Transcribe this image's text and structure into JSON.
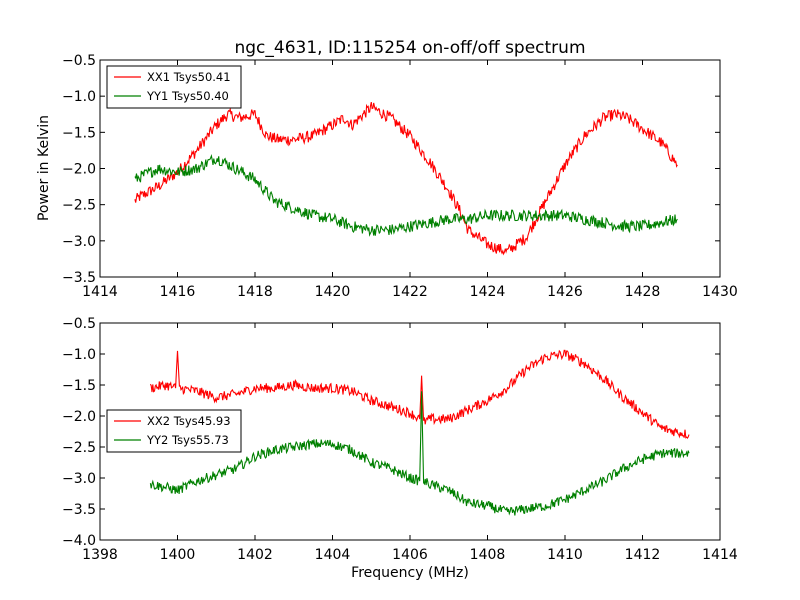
{
  "title": "ngc_4631, ID:115254 on-off/off spectrum",
  "colors": {
    "xx": "#ff0000",
    "yy": "#008000"
  },
  "chart_data": [
    {
      "type": "line",
      "title": "ngc_4631, ID:115254 on-off/off spectrum",
      "xlabel": "",
      "ylabel": "Power in Kelvin",
      "xlim": [
        1414,
        1430
      ],
      "ylim": [
        -3.5,
        -0.5
      ],
      "xticks": [
        1414,
        1416,
        1418,
        1420,
        1422,
        1424,
        1426,
        1428,
        1430
      ],
      "yticks": [
        -3.5,
        -3.0,
        -2.5,
        -2.0,
        -1.5,
        -1.0,
        -0.5
      ],
      "xtick_labels": [
        "1414",
        "1416",
        "1418",
        "1420",
        "1422",
        "1424",
        "1426",
        "1428",
        "1430"
      ],
      "ytick_labels": [
        "−3.5",
        "−3.0",
        "−2.5",
        "−2.0",
        "−1.5",
        "−1.0",
        "−0.5"
      ],
      "grid": false,
      "legend_position": "top-left",
      "series": [
        {
          "name": "XX1 Tsys50.41",
          "color": "#ff0000",
          "x": [
            1414.9,
            1415.0,
            1415.5,
            1416.0,
            1416.5,
            1417.0,
            1417.3,
            1417.6,
            1418.0,
            1418.3,
            1418.6,
            1419.0,
            1419.5,
            1420.0,
            1420.3,
            1420.5,
            1420.7,
            1421.0,
            1421.5,
            1422.0,
            1422.5,
            1423.0,
            1423.3,
            1423.5,
            1424.0,
            1424.5,
            1425.0,
            1425.5,
            1426.0,
            1426.5,
            1427.0,
            1427.3,
            1427.6,
            1428.0,
            1428.5,
            1428.9
          ],
          "y": [
            -2.45,
            -2.4,
            -2.25,
            -2.05,
            -1.75,
            -1.4,
            -1.25,
            -1.3,
            -1.25,
            -1.55,
            -1.6,
            -1.6,
            -1.55,
            -1.4,
            -1.3,
            -1.4,
            -1.3,
            -1.15,
            -1.3,
            -1.55,
            -1.9,
            -2.3,
            -2.6,
            -2.85,
            -3.05,
            -3.15,
            -2.95,
            -2.45,
            -1.95,
            -1.55,
            -1.3,
            -1.25,
            -1.3,
            -1.45,
            -1.65,
            -1.95
          ]
        },
        {
          "name": "YY1 Tsys50.40",
          "color": "#008000",
          "x": [
            1414.9,
            1415.5,
            1416.0,
            1416.5,
            1417.0,
            1417.5,
            1418.0,
            1418.5,
            1419.0,
            1419.5,
            1420.0,
            1420.5,
            1421.0,
            1421.5,
            1422.0,
            1422.5,
            1423.0,
            1423.5,
            1424.0,
            1424.5,
            1425.0,
            1425.5,
            1426.0,
            1426.5,
            1427.0,
            1427.5,
            1428.0,
            1428.9
          ],
          "y": [
            -2.15,
            -2.0,
            -2.05,
            -2.0,
            -1.85,
            -2.0,
            -2.15,
            -2.45,
            -2.55,
            -2.65,
            -2.7,
            -2.8,
            -2.85,
            -2.85,
            -2.8,
            -2.75,
            -2.7,
            -2.7,
            -2.65,
            -2.65,
            -2.65,
            -2.65,
            -2.65,
            -2.7,
            -2.75,
            -2.8,
            -2.8,
            -2.7
          ]
        }
      ]
    },
    {
      "type": "line",
      "title": "",
      "xlabel": "Frequency (MHz)",
      "ylabel": "",
      "xlim": [
        1398,
        1414
      ],
      "ylim": [
        -4.0,
        -0.5
      ],
      "xticks": [
        1398,
        1400,
        1402,
        1404,
        1406,
        1408,
        1410,
        1412,
        1414
      ],
      "yticks": [
        -4.0,
        -3.5,
        -3.0,
        -2.5,
        -2.0,
        -1.5,
        -1.0,
        -0.5
      ],
      "xtick_labels": [
        "1398",
        "1400",
        "1402",
        "1404",
        "1406",
        "1408",
        "1410",
        "1412",
        "1414"
      ],
      "ytick_labels": [
        "−4.0",
        "−3.5",
        "−3.0",
        "−2.5",
        "−2.0",
        "−1.5",
        "−1.0",
        "−0.5"
      ],
      "grid": false,
      "legend_position": "middle-left",
      "series": [
        {
          "name": "XX2 Tsys45.93",
          "color": "#ff0000",
          "x": [
            1399.3,
            1399.7,
            1399.95,
            1400.0,
            1400.05,
            1400.5,
            1401.0,
            1401.5,
            1402.0,
            1402.5,
            1403.0,
            1403.5,
            1404.0,
            1404.5,
            1405.0,
            1405.5,
            1406.0,
            1406.25,
            1406.3,
            1406.35,
            1406.5,
            1407.0,
            1407.5,
            1408.0,
            1408.5,
            1409.0,
            1409.5,
            1410.0,
            1410.5,
            1411.0,
            1411.5,
            1412.0,
            1412.5,
            1413.2
          ],
          "y": [
            -1.55,
            -1.5,
            -1.55,
            -0.95,
            -1.55,
            -1.6,
            -1.7,
            -1.65,
            -1.55,
            -1.55,
            -1.5,
            -1.55,
            -1.55,
            -1.6,
            -1.75,
            -1.85,
            -1.95,
            -2.05,
            -1.35,
            -2.1,
            -2.05,
            -2.05,
            -1.9,
            -1.75,
            -1.55,
            -1.25,
            -1.05,
            -1.0,
            -1.15,
            -1.4,
            -1.7,
            -1.95,
            -2.2,
            -2.3
          ]
        },
        {
          "name": "YY2 Tsys55.73",
          "color": "#008000",
          "x": [
            1399.3,
            1399.7,
            1400.0,
            1400.5,
            1401.0,
            1401.5,
            1402.0,
            1402.5,
            1403.0,
            1403.5,
            1404.0,
            1404.5,
            1405.0,
            1405.5,
            1406.0,
            1406.25,
            1406.3,
            1406.35,
            1406.5,
            1407.0,
            1407.5,
            1408.0,
            1408.5,
            1409.0,
            1409.5,
            1410.0,
            1410.5,
            1411.0,
            1411.5,
            1412.0,
            1412.5,
            1413.2
          ],
          "y": [
            -3.1,
            -3.15,
            -3.2,
            -3.05,
            -2.95,
            -2.85,
            -2.65,
            -2.55,
            -2.5,
            -2.45,
            -2.45,
            -2.55,
            -2.75,
            -2.85,
            -3.0,
            -3.05,
            -1.6,
            -3.05,
            -3.1,
            -3.2,
            -3.4,
            -3.45,
            -3.55,
            -3.5,
            -3.45,
            -3.35,
            -3.2,
            -3.05,
            -2.85,
            -2.7,
            -2.6,
            -2.6
          ]
        }
      ]
    }
  ]
}
